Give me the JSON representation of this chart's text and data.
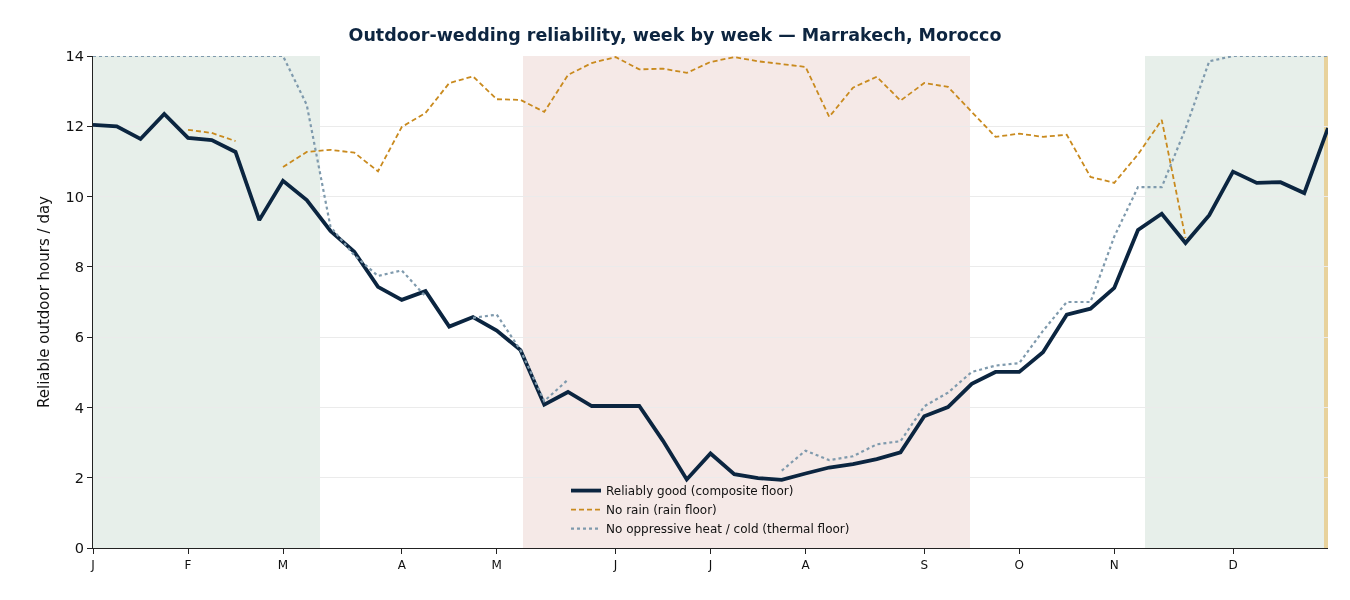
{
  "chart_data": {
    "type": "line",
    "title": "Outdoor-wedding reliability, week by week — Marrakech, Morocco",
    "ylabel": "Reliable outdoor hours / day",
    "categories": [
      "J",
      null,
      null,
      null,
      "F",
      null,
      null,
      null,
      "M",
      null,
      null,
      null,
      null,
      "A",
      null,
      null,
      null,
      "M",
      null,
      null,
      null,
      null,
      "J",
      null,
      null,
      null,
      "J",
      null,
      null,
      null,
      "A",
      null,
      null,
      null,
      null,
      "S",
      null,
      null,
      null,
      "O",
      null,
      null,
      null,
      "N",
      null,
      null,
      null,
      null,
      "D",
      null,
      null,
      null,
      null
    ],
    "ylim": [
      0,
      14
    ],
    "yticks": [
      0,
      2,
      4,
      6,
      8,
      10,
      12,
      14
    ],
    "grid": "y",
    "legend": "bottom",
    "marker": "none",
    "series": [
      {
        "name": "Reliably good (composite floor)",
        "color": "#0b2540",
        "line_style": "solid",
        "values": [
          12.04,
          12.0,
          11.64,
          12.35,
          11.67,
          11.61,
          11.27,
          9.33,
          10.45,
          9.9,
          9.02,
          8.43,
          7.43,
          7.06,
          7.31,
          6.3,
          6.57,
          6.19,
          5.63,
          4.08,
          4.44,
          4.04,
          4.04,
          4.04,
          3.05,
          1.95,
          2.69,
          2.1,
          1.99,
          1.94,
          2.12,
          2.29,
          2.39,
          2.53,
          2.72,
          3.75,
          4.01,
          4.67,
          5.01,
          5.01,
          5.57,
          6.64,
          6.81,
          7.4,
          9.05,
          9.51,
          8.68,
          9.47,
          10.71,
          10.39,
          10.41,
          10.1,
          11.95
        ]
      },
      {
        "name": "No rain (rain floor)",
        "color": "#c98a1e",
        "line_style": "dashed",
        "values": [
          null,
          null,
          null,
          null,
          11.9,
          11.81,
          11.58,
          null,
          10.84,
          11.27,
          11.33,
          11.25,
          10.72,
          11.98,
          12.38,
          13.23,
          13.42,
          12.77,
          12.75,
          12.41,
          13.46,
          13.8,
          13.97,
          13.62,
          13.64,
          13.52,
          13.83,
          13.97,
          13.85,
          13.77,
          13.69,
          12.27,
          13.1,
          13.41,
          12.73,
          13.23,
          13.12,
          12.41,
          11.7,
          11.79,
          11.7,
          11.76,
          10.56,
          10.39,
          11.2,
          12.18,
          8.82,
          null,
          null,
          null,
          null,
          null,
          null
        ]
      },
      {
        "name": "No oppressive heat / cold (thermal floor)",
        "color": "#7f9aad",
        "line_style": "dotted",
        "values": [
          14,
          14,
          14,
          14,
          14,
          14,
          14,
          14,
          14,
          12.61,
          9.14,
          8.33,
          7.74,
          7.9,
          7.16,
          null,
          6.55,
          6.64,
          5.63,
          4.18,
          4.79,
          null,
          null,
          null,
          null,
          null,
          null,
          null,
          null,
          2.2,
          2.77,
          2.5,
          2.61,
          2.95,
          3.04,
          4.03,
          4.42,
          5.01,
          5.19,
          5.26,
          6.18,
          7.0,
          7.0,
          8.86,
          10.27,
          10.27,
          11.93,
          13.85,
          14,
          14,
          14,
          14,
          14
        ]
      }
    ]
  }
}
